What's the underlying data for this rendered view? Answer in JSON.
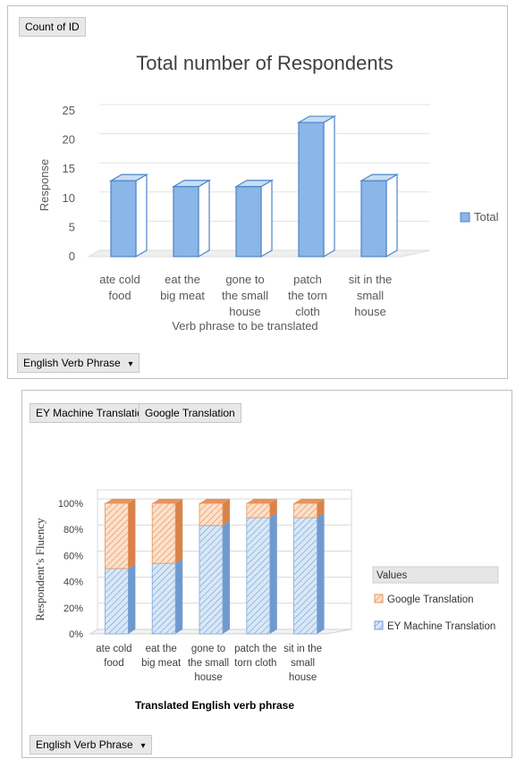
{
  "panel1": {
    "field_button": "Count of ID",
    "filter_button": "English Verb Phrase"
  },
  "panel2": {
    "field_buttons": [
      "EY Machine Translation",
      "Google Translation"
    ],
    "filter_button": "English Verb Phrase"
  },
  "colors": {
    "bar_blue": "#8ab6e8",
    "bar_blue_dark": "#4d85c8",
    "google_orange": "#f4b183",
    "ey_blue": "#bdd7ee"
  },
  "chart_data": [
    {
      "type": "bar",
      "title": "Total number of Respondents",
      "xlabel": "Verb phrase to be translated",
      "ylabel": "Response",
      "categories": [
        [
          "ate cold",
          "food"
        ],
        [
          "eat the",
          "big meat"
        ],
        [
          "gone to",
          "the small",
          "house"
        ],
        [
          "patch",
          "the torn",
          "cloth"
        ],
        [
          "sit in the",
          "small",
          "house"
        ]
      ],
      "series": [
        {
          "name": "Total",
          "values": [
            13,
            12,
            12,
            23,
            13
          ]
        }
      ],
      "ylim": [
        0,
        25
      ],
      "yticks": [
        "0",
        "5",
        "10",
        "15",
        "20",
        "25"
      ],
      "legend_position": "right",
      "grid": true
    },
    {
      "type": "bar",
      "stacked": true,
      "percent": true,
      "xlabel": "Translated English verb phrase",
      "ylabel": "Respondent’s Fluency",
      "categories": [
        [
          "ate cold",
          "food"
        ],
        [
          "eat the",
          "big meat"
        ],
        [
          "gone to",
          "the small",
          "house"
        ],
        [
          "patch the",
          "torn cloth"
        ],
        [
          "sit in the",
          "small",
          "house"
        ]
      ],
      "series": [
        {
          "name": "EY Machine Translation",
          "values": [
            0.5,
            0.54,
            0.83,
            0.89,
            0.89
          ]
        },
        {
          "name": "Google Translation",
          "values": [
            0.5,
            0.46,
            0.17,
            0.11,
            0.11
          ]
        }
      ],
      "ylim": [
        0,
        1
      ],
      "yticks": [
        "0%",
        "20%",
        "40%",
        "60%",
        "80%",
        "100%"
      ],
      "legend_title": "Values",
      "legend_entries": [
        "Google Translation",
        "EY Machine Translation"
      ],
      "legend_position": "right",
      "grid": true
    }
  ]
}
